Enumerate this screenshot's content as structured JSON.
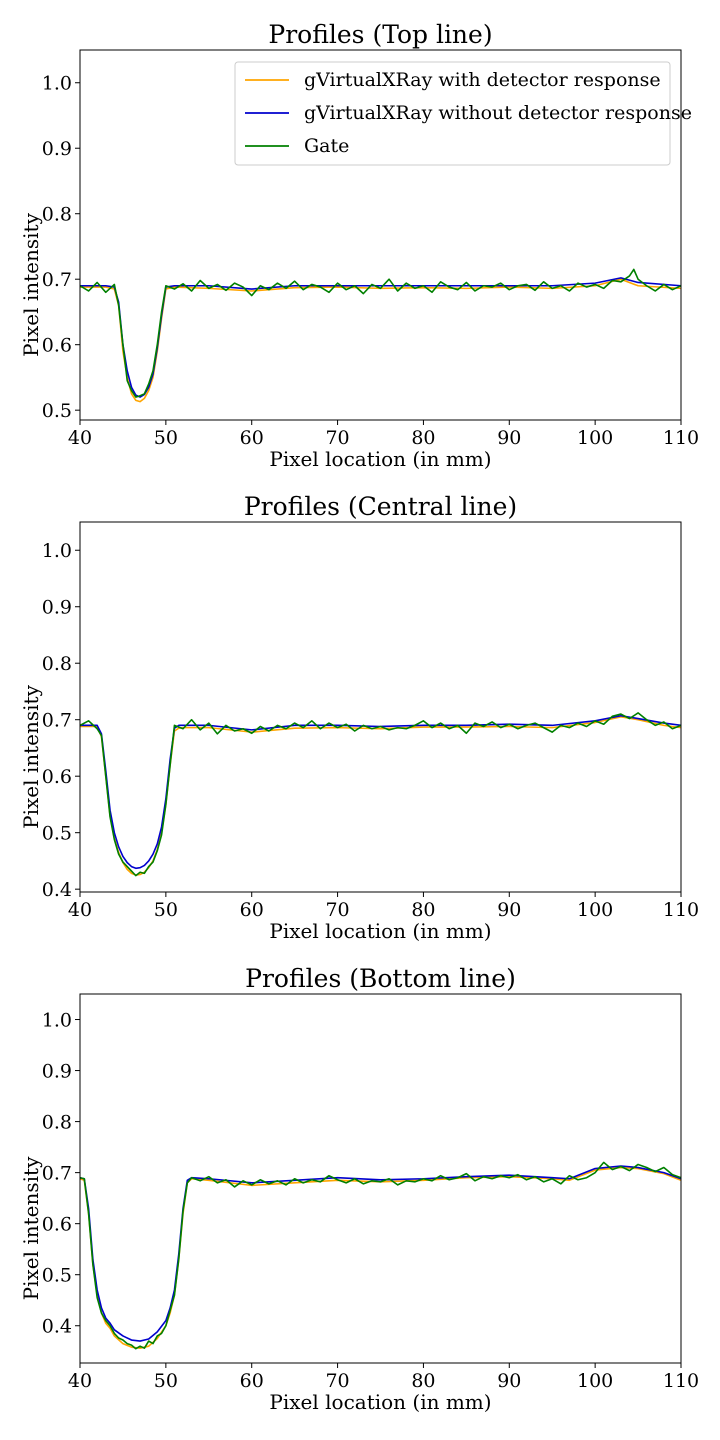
{
  "chart_data": [
    {
      "type": "line",
      "title": "Profiles (Top line)",
      "xlabel": "Pixel location (in mm)",
      "ylabel": "Pixel intensity",
      "xlim": [
        40,
        110
      ],
      "ylim": [
        0.485,
        1.05
      ],
      "xticks": [
        40,
        50,
        60,
        70,
        80,
        90,
        100,
        110
      ],
      "yticks": [
        0.5,
        0.6,
        0.7,
        0.8,
        0.9,
        1.0
      ],
      "ytick_labels": [
        "0.5",
        "0.6",
        "0.7",
        "0.8",
        "0.9",
        "1.0"
      ],
      "legend": {
        "position": "top-right"
      },
      "series": [
        {
          "name": "gVirtualXRay with detector response",
          "color": "#FFA500",
          "x": [
            40,
            43,
            44,
            44.5,
            45,
            45.5,
            46,
            46.5,
            47,
            47.5,
            48,
            48.5,
            49,
            49.5,
            50,
            51,
            55,
            60,
            65,
            70,
            75,
            80,
            85,
            90,
            95,
            100,
            103,
            105,
            110
          ],
          "y": [
            0.688,
            0.688,
            0.685,
            0.66,
            0.59,
            0.55,
            0.525,
            0.515,
            0.513,
            0.518,
            0.53,
            0.55,
            0.59,
            0.64,
            0.685,
            0.688,
            0.686,
            0.682,
            0.687,
            0.688,
            0.686,
            0.687,
            0.686,
            0.688,
            0.686,
            0.69,
            0.7,
            0.69,
            0.686
          ]
        },
        {
          "name": "gVirtualXRay without detector response",
          "color": "#0000CD",
          "x": [
            40,
            43,
            44,
            44.5,
            45,
            45.5,
            46,
            46.5,
            47,
            47.5,
            48,
            48.5,
            49,
            49.5,
            50,
            51,
            55,
            60,
            65,
            70,
            75,
            80,
            85,
            90,
            95,
            100,
            103,
            105,
            110
          ],
          "y": [
            0.69,
            0.69,
            0.688,
            0.665,
            0.6,
            0.56,
            0.535,
            0.523,
            0.52,
            0.524,
            0.535,
            0.555,
            0.595,
            0.645,
            0.688,
            0.69,
            0.69,
            0.685,
            0.69,
            0.69,
            0.69,
            0.69,
            0.69,
            0.69,
            0.69,
            0.694,
            0.702,
            0.695,
            0.69
          ]
        },
        {
          "name": "Gate",
          "color": "#008000",
          "x": [
            40,
            41,
            42,
            43,
            44,
            44.5,
            45,
            45.5,
            46,
            46.5,
            47,
            47.5,
            48,
            48.5,
            49,
            49.5,
            50,
            51,
            52,
            53,
            54,
            55,
            56,
            57,
            58,
            59,
            60,
            61,
            62,
            63,
            64,
            65,
            66,
            67,
            68,
            69,
            70,
            71,
            72,
            73,
            74,
            75,
            76,
            77,
            78,
            79,
            80,
            81,
            82,
            83,
            84,
            85,
            86,
            87,
            88,
            89,
            90,
            91,
            92,
            93,
            94,
            95,
            96,
            97,
            98,
            99,
            100,
            101,
            102,
            103,
            104,
            104.5,
            105,
            106,
            107,
            108,
            109,
            110
          ],
          "y": [
            0.69,
            0.682,
            0.695,
            0.68,
            0.692,
            0.66,
            0.6,
            0.545,
            0.53,
            0.52,
            0.522,
            0.525,
            0.54,
            0.56,
            0.6,
            0.65,
            0.69,
            0.685,
            0.693,
            0.682,
            0.698,
            0.686,
            0.692,
            0.683,
            0.694,
            0.688,
            0.675,
            0.69,
            0.684,
            0.694,
            0.686,
            0.697,
            0.684,
            0.692,
            0.688,
            0.68,
            0.694,
            0.684,
            0.69,
            0.678,
            0.692,
            0.686,
            0.7,
            0.682,
            0.694,
            0.686,
            0.69,
            0.68,
            0.696,
            0.688,
            0.684,
            0.695,
            0.682,
            0.69,
            0.688,
            0.694,
            0.684,
            0.69,
            0.692,
            0.683,
            0.696,
            0.686,
            0.69,
            0.682,
            0.694,
            0.688,
            0.692,
            0.686,
            0.698,
            0.696,
            0.705,
            0.715,
            0.7,
            0.69,
            0.682,
            0.692,
            0.684,
            0.69
          ]
        }
      ]
    },
    {
      "type": "line",
      "title": "Profiles (Central line)",
      "xlabel": "Pixel location (in mm)",
      "ylabel": "Pixel intensity",
      "xlim": [
        40,
        110
      ],
      "ylim": [
        0.395,
        1.05
      ],
      "xticks": [
        40,
        50,
        60,
        70,
        80,
        90,
        100,
        110
      ],
      "yticks": [
        0.4,
        0.5,
        0.6,
        0.7,
        0.8,
        0.9,
        1.0
      ],
      "ytick_labels": [
        "0.4",
        "0.5",
        "0.6",
        "0.7",
        "0.8",
        "0.9",
        "1.0"
      ],
      "series": [
        {
          "name": "gVirtualXRay with detector response",
          "color": "#FFA500",
          "x": [
            40,
            42,
            42.5,
            43,
            43.5,
            44,
            44.5,
            45,
            45.5,
            46,
            46.5,
            47,
            47.5,
            48,
            48.5,
            49,
            49.5,
            50,
            50.5,
            51,
            51.5,
            52,
            55,
            60,
            65,
            70,
            75,
            80,
            85,
            90,
            95,
            100,
            103,
            105,
            108,
            110
          ],
          "y": [
            0.688,
            0.688,
            0.67,
            0.6,
            0.53,
            0.49,
            0.465,
            0.447,
            0.435,
            0.428,
            0.425,
            0.426,
            0.43,
            0.438,
            0.45,
            0.47,
            0.5,
            0.55,
            0.62,
            0.68,
            0.685,
            0.686,
            0.686,
            0.678,
            0.685,
            0.686,
            0.684,
            0.687,
            0.687,
            0.688,
            0.686,
            0.695,
            0.705,
            0.7,
            0.69,
            0.686
          ]
        },
        {
          "name": "gVirtualXRay without detector response",
          "color": "#0000CD",
          "x": [
            40,
            42,
            42.5,
            43,
            43.5,
            44,
            44.5,
            45,
            45.5,
            46,
            46.5,
            47,
            47.5,
            48,
            48.5,
            49,
            49.5,
            50,
            50.5,
            51,
            51.5,
            52,
            55,
            60,
            65,
            70,
            75,
            80,
            85,
            90,
            95,
            100,
            103,
            105,
            108,
            110
          ],
          "y": [
            0.69,
            0.69,
            0.675,
            0.61,
            0.54,
            0.5,
            0.475,
            0.458,
            0.447,
            0.44,
            0.437,
            0.438,
            0.442,
            0.45,
            0.462,
            0.48,
            0.51,
            0.56,
            0.63,
            0.685,
            0.69,
            0.69,
            0.69,
            0.682,
            0.69,
            0.69,
            0.688,
            0.69,
            0.69,
            0.692,
            0.69,
            0.698,
            0.707,
            0.702,
            0.694,
            0.69
          ]
        },
        {
          "name": "Gate",
          "color": "#008000",
          "x": [
            40,
            41,
            42,
            42.5,
            43,
            43.5,
            44,
            44.5,
            45,
            45.5,
            46,
            46.5,
            47,
            47.5,
            48,
            48.5,
            49,
            49.5,
            50,
            50.5,
            51,
            52,
            53,
            54,
            55,
            56,
            57,
            58,
            59,
            60,
            61,
            62,
            63,
            64,
            65,
            66,
            67,
            68,
            69,
            70,
            71,
            72,
            73,
            74,
            75,
            76,
            77,
            78,
            79,
            80,
            81,
            82,
            83,
            84,
            85,
            86,
            87,
            88,
            89,
            90,
            91,
            92,
            93,
            94,
            95,
            96,
            97,
            98,
            99,
            100,
            101,
            102,
            103,
            104,
            105,
            106,
            107,
            108,
            109,
            110
          ],
          "y": [
            0.69,
            0.698,
            0.684,
            0.672,
            0.6,
            0.528,
            0.488,
            0.462,
            0.448,
            0.44,
            0.432,
            0.424,
            0.43,
            0.428,
            0.44,
            0.448,
            0.468,
            0.496,
            0.55,
            0.62,
            0.69,
            0.684,
            0.7,
            0.682,
            0.694,
            0.675,
            0.69,
            0.68,
            0.684,
            0.676,
            0.688,
            0.68,
            0.69,
            0.684,
            0.694,
            0.686,
            0.698,
            0.684,
            0.694,
            0.686,
            0.692,
            0.68,
            0.69,
            0.684,
            0.688,
            0.682,
            0.686,
            0.684,
            0.69,
            0.698,
            0.686,
            0.694,
            0.684,
            0.69,
            0.676,
            0.694,
            0.688,
            0.696,
            0.686,
            0.692,
            0.684,
            0.69,
            0.694,
            0.686,
            0.678,
            0.69,
            0.686,
            0.694,
            0.688,
            0.698,
            0.692,
            0.706,
            0.71,
            0.702,
            0.712,
            0.7,
            0.69,
            0.696,
            0.684,
            0.69
          ]
        }
      ]
    },
    {
      "type": "line",
      "title": "Profiles (Bottom line)",
      "xlabel": "Pixel location (in mm)",
      "ylabel": "Pixel intensity",
      "xlim": [
        40,
        110
      ],
      "ylim": [
        0.327,
        1.05
      ],
      "xticks": [
        40,
        50,
        60,
        70,
        80,
        90,
        100,
        110
      ],
      "yticks": [
        0.4,
        0.5,
        0.6,
        0.7,
        0.8,
        0.9,
        1.0
      ],
      "ytick_labels": [
        "0.4",
        "0.5",
        "0.6",
        "0.7",
        "0.8",
        "0.9",
        "1.0"
      ],
      "series": [
        {
          "name": "gVirtualXRay with detector response",
          "color": "#FFA500",
          "x": [
            40,
            40.5,
            41,
            41.5,
            42,
            42.5,
            43,
            43.5,
            44,
            45,
            46,
            47,
            48,
            49,
            50,
            50.5,
            51,
            51.5,
            52,
            52.5,
            53,
            55,
            60,
            65,
            70,
            75,
            80,
            85,
            90,
            95,
            97,
            100,
            103,
            105,
            108,
            110
          ],
          "y": [
            0.688,
            0.685,
            0.62,
            0.52,
            0.46,
            0.425,
            0.405,
            0.395,
            0.38,
            0.365,
            0.358,
            0.356,
            0.36,
            0.375,
            0.4,
            0.425,
            0.46,
            0.53,
            0.62,
            0.68,
            0.688,
            0.685,
            0.675,
            0.68,
            0.685,
            0.682,
            0.685,
            0.69,
            0.692,
            0.688,
            0.685,
            0.705,
            0.71,
            0.708,
            0.698,
            0.685
          ]
        },
        {
          "name": "gVirtualXRay without detector response",
          "color": "#0000CD",
          "x": [
            40,
            40.5,
            41,
            41.5,
            42,
            42.5,
            43,
            43.5,
            44,
            45,
            46,
            47,
            48,
            49,
            50,
            50.5,
            51,
            51.5,
            52,
            52.5,
            53,
            55,
            60,
            65,
            70,
            75,
            80,
            85,
            90,
            95,
            97,
            100,
            103,
            105,
            108,
            110
          ],
          "y": [
            0.69,
            0.688,
            0.63,
            0.53,
            0.47,
            0.435,
            0.415,
            0.405,
            0.392,
            0.38,
            0.372,
            0.37,
            0.374,
            0.388,
            0.41,
            0.435,
            0.47,
            0.54,
            0.63,
            0.685,
            0.69,
            0.688,
            0.68,
            0.685,
            0.69,
            0.686,
            0.688,
            0.692,
            0.695,
            0.69,
            0.688,
            0.708,
            0.713,
            0.71,
            0.7,
            0.688
          ]
        },
        {
          "name": "Gate",
          "color": "#008000",
          "x": [
            40,
            40.5,
            41,
            41.5,
            42,
            42.5,
            43,
            43.5,
            44,
            44.5,
            45,
            45.5,
            46,
            46.5,
            47,
            47.5,
            48,
            48.5,
            49,
            49.5,
            50,
            50.5,
            51,
            51.5,
            52,
            52.5,
            53,
            54,
            55,
            56,
            57,
            58,
            59,
            60,
            61,
            62,
            63,
            64,
            65,
            66,
            67,
            68,
            69,
            70,
            71,
            72,
            73,
            74,
            75,
            76,
            77,
            78,
            79,
            80,
            81,
            82,
            83,
            84,
            85,
            86,
            87,
            88,
            89,
            90,
            91,
            92,
            93,
            94,
            95,
            96,
            97,
            98,
            99,
            100,
            101,
            102,
            103,
            104,
            105,
            106,
            107,
            108,
            109,
            110
          ],
          "y": [
            0.69,
            0.688,
            0.62,
            0.52,
            0.455,
            0.425,
            0.41,
            0.4,
            0.385,
            0.376,
            0.372,
            0.365,
            0.362,
            0.355,
            0.36,
            0.356,
            0.37,
            0.365,
            0.38,
            0.385,
            0.4,
            0.43,
            0.46,
            0.53,
            0.625,
            0.68,
            0.69,
            0.684,
            0.692,
            0.68,
            0.686,
            0.672,
            0.684,
            0.676,
            0.686,
            0.678,
            0.684,
            0.676,
            0.688,
            0.68,
            0.686,
            0.682,
            0.694,
            0.686,
            0.68,
            0.688,
            0.678,
            0.684,
            0.682,
            0.688,
            0.676,
            0.684,
            0.682,
            0.688,
            0.684,
            0.694,
            0.686,
            0.69,
            0.698,
            0.684,
            0.692,
            0.688,
            0.694,
            0.69,
            0.696,
            0.686,
            0.692,
            0.682,
            0.688,
            0.678,
            0.694,
            0.686,
            0.69,
            0.7,
            0.72,
            0.706,
            0.712,
            0.704,
            0.716,
            0.71,
            0.702,
            0.71,
            0.696,
            0.69
          ]
        }
      ]
    }
  ]
}
